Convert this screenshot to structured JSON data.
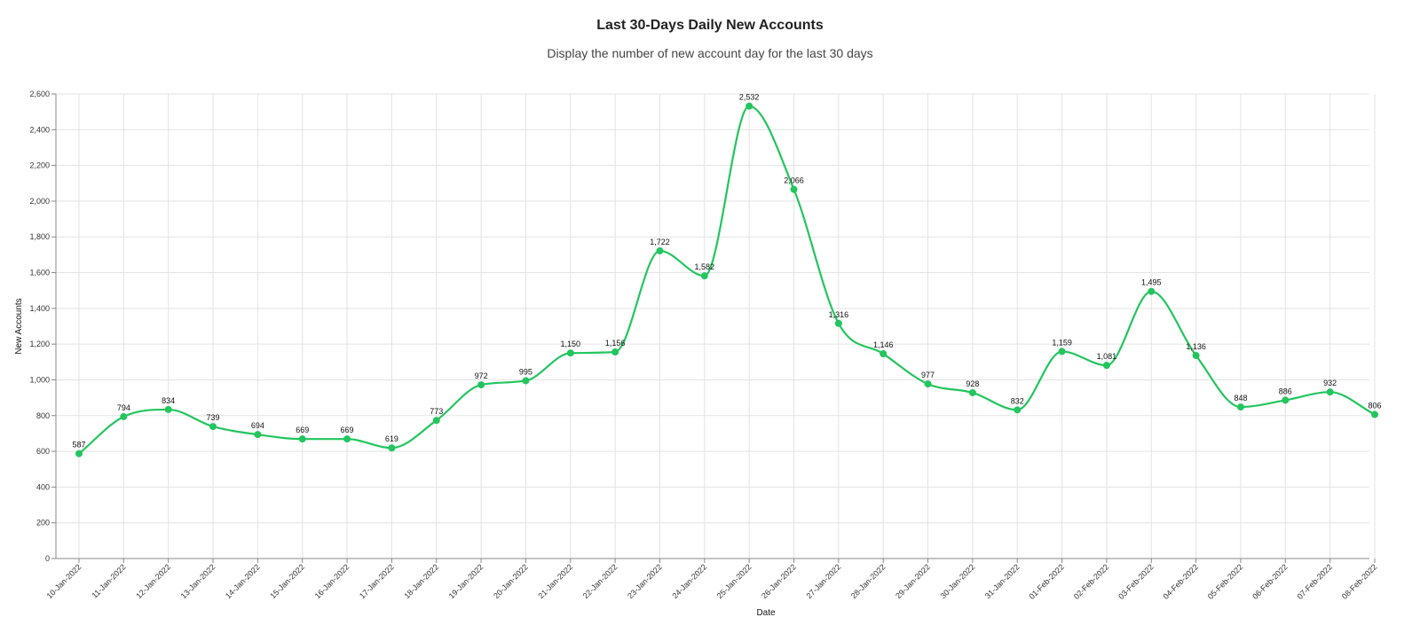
{
  "chart_data": {
    "type": "line",
    "title": "Last 30-Days Daily New Accounts",
    "subtitle": "Display the number of new account day for the last 30 days",
    "xlabel": "Date",
    "ylabel": "New Accounts",
    "ylim": [
      0,
      2600
    ],
    "ytick_step": 200,
    "grid": true,
    "line_color": "#22c55e",
    "categories": [
      "10-Jan-2022",
      "11-Jan-2022",
      "12-Jan-2022",
      "13-Jan-2022",
      "14-Jan-2022",
      "15-Jan-2022",
      "16-Jan-2022",
      "17-Jan-2022",
      "18-Jan-2022",
      "19-Jan-2022",
      "20-Jan-2022",
      "21-Jan-2022",
      "22-Jan-2022",
      "23-Jan-2022",
      "24-Jan-2022",
      "25-Jan-2022",
      "26-Jan-2022",
      "27-Jan-2022",
      "28-Jan-2022",
      "29-Jan-2022",
      "30-Jan-2022",
      "31-Jan-2022",
      "01-Feb-2022",
      "02-Feb-2022",
      "03-Feb-2022",
      "04-Feb-2022",
      "05-Feb-2022",
      "06-Feb-2022",
      "07-Feb-2022",
      "08-Feb-2022"
    ],
    "values": [
      587,
      794,
      834,
      739,
      694,
      669,
      669,
      619,
      773,
      972,
      995,
      1150,
      1156,
      1722,
      1582,
      2532,
      2066,
      1316,
      1146,
      977,
      928,
      832,
      1159,
      1081,
      1495,
      1136,
      848,
      886,
      932,
      806
    ]
  }
}
